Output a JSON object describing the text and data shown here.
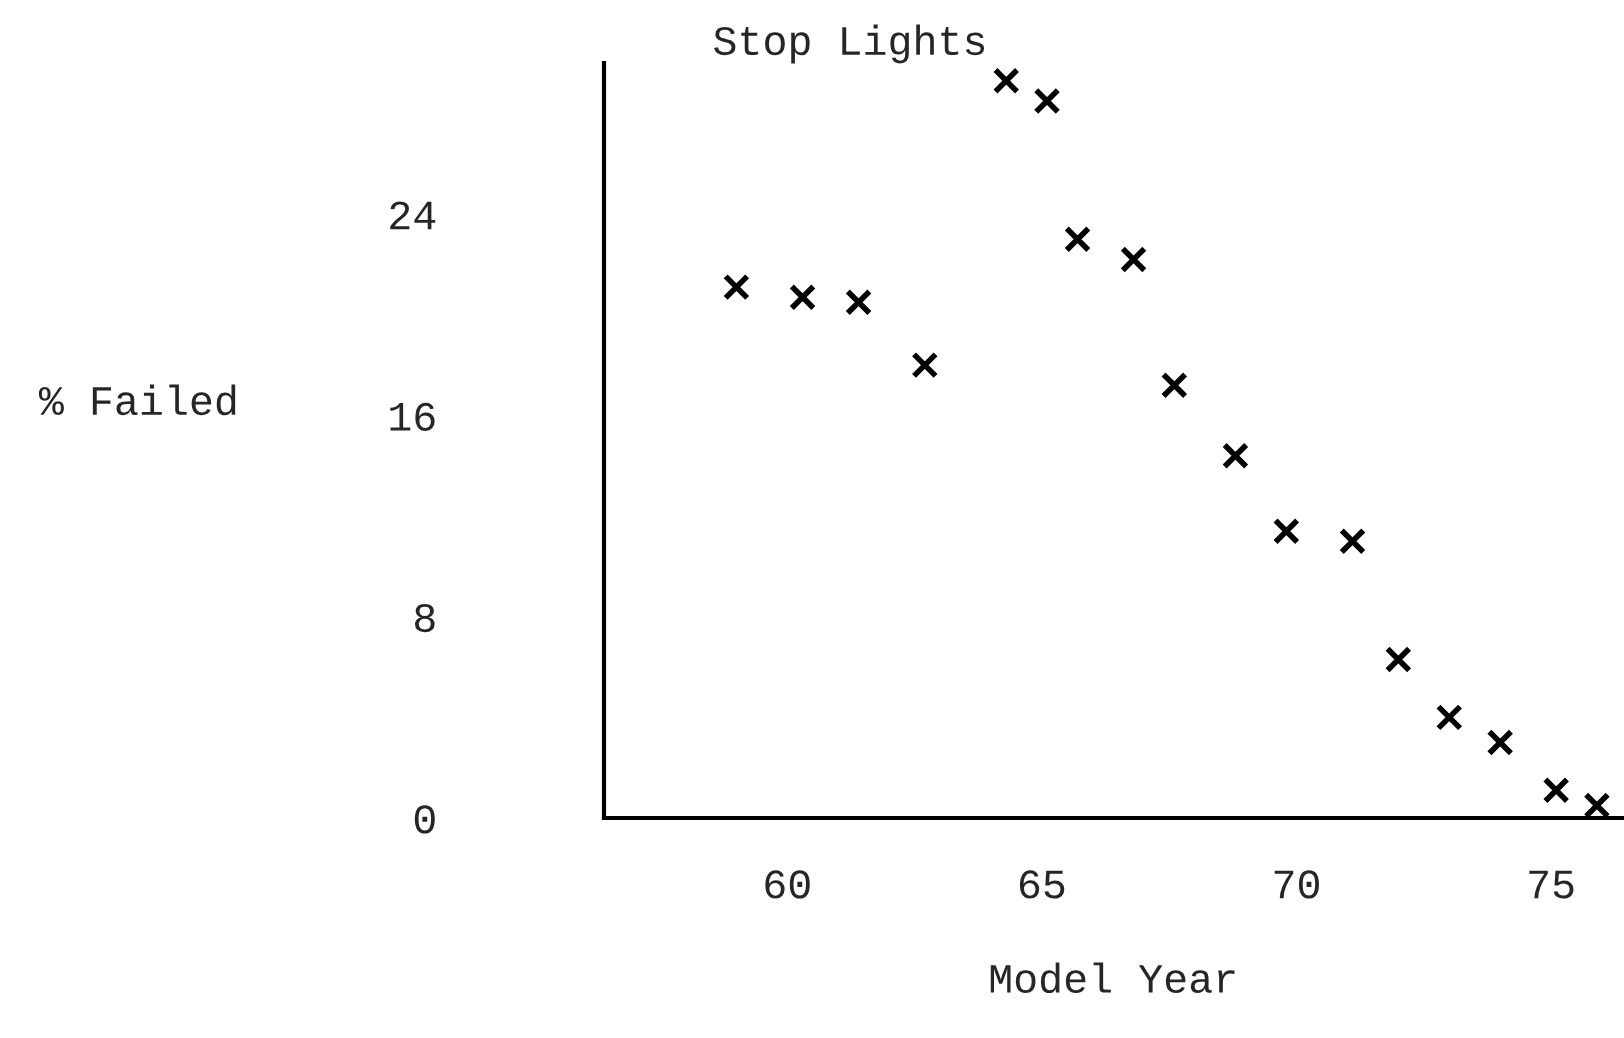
{
  "chart_data": {
    "type": "scatter",
    "title": "Stop Lights",
    "xlabel": "Model Year",
    "ylabel": "% Failed",
    "x": [
      59.0,
      60.3,
      61.4,
      62.7,
      64.3,
      65.1,
      65.7,
      66.8,
      67.6,
      68.8,
      69.8,
      71.1,
      72.0,
      73.0,
      74.0,
      75.1,
      75.9
    ],
    "values": [
      21.1,
      20.7,
      20.5,
      18.0,
      29.3,
      28.5,
      23.0,
      22.2,
      17.2,
      14.4,
      11.4,
      11.0,
      6.3,
      4.0,
      3.0,
      1.1,
      0.5
    ],
    "color": "#000000",
    "marker": "cross",
    "xlim": [
      56.4,
      76.4
    ],
    "ylim": [
      0,
      30
    ],
    "xticks": [
      60,
      65,
      70,
      75
    ],
    "yticks": [
      0,
      8,
      16,
      24
    ],
    "grid": false
  }
}
